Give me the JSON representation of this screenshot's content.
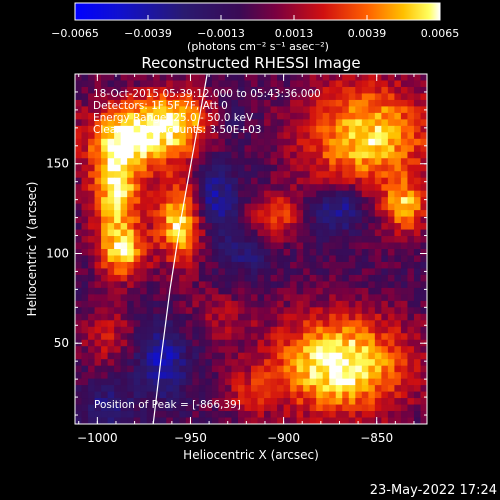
{
  "colorbar": {
    "ticks": [
      "-0.0065",
      "-0.0039",
      "-0.0013",
      "0.0013",
      "0.0039",
      "0.0065"
    ],
    "range": [
      -0.0065,
      0.0065
    ],
    "units_label": "(photons cm⁻² s⁻¹ asec⁻²)"
  },
  "chart_data": {
    "type": "heatmap",
    "title": "Reconstructed RHESSI Image",
    "xlabel": "Heliocentric X (arcsec)",
    "ylabel": "Heliocentric Y (arcsec)",
    "xlim": [
      -1012,
      -823
    ],
    "ylim": [
      5,
      200
    ],
    "xticks": [
      -1000,
      -950,
      -900,
      -850
    ],
    "xtick_labels": [
      "−1000",
      "−950",
      "−900",
      "−850"
    ],
    "yticks": [
      50,
      100,
      150
    ],
    "ytick_labels": [
      "50",
      "100",
      "150"
    ],
    "colormap": "blue-purple-red-yellow-white",
    "info_lines": [
      "18-Oct-2015 05:39:12.000 to 05:43:36.000",
      "Detectors: 1F 5F 7F, Att 0",
      "Energy Range: 25.0 - 50.0 keV",
      "Clean     Total counts: 3.50E+03"
    ],
    "peak_label": "Position of Peak = [-866,39]",
    "peak": [
      -866,
      39
    ],
    "limb_curve": [
      [
        -970,
        5
      ],
      [
        -966,
        40
      ],
      [
        -961,
        80
      ],
      [
        -955,
        120
      ],
      [
        -948,
        160
      ],
      [
        -941,
        200
      ]
    ],
    "sources": [
      {
        "x": -870,
        "y": 38,
        "sx": 26,
        "sy": 20,
        "amp": 1.0
      },
      {
        "x": -955,
        "y": 118,
        "sx": 9,
        "sy": 16,
        "amp": 0.95
      },
      {
        "x": -990,
        "y": 132,
        "sx": 10,
        "sy": 20,
        "amp": 0.85
      },
      {
        "x": -986,
        "y": 100,
        "sx": 9,
        "sy": 10,
        "amp": 0.7
      },
      {
        "x": -980,
        "y": 165,
        "sx": 20,
        "sy": 14,
        "amp": 0.8
      },
      {
        "x": -955,
        "y": 175,
        "sx": 16,
        "sy": 12,
        "amp": 0.6
      },
      {
        "x": -855,
        "y": 165,
        "sx": 25,
        "sy": 22,
        "amp": 0.85
      },
      {
        "x": -835,
        "y": 125,
        "sx": 8,
        "sy": 10,
        "amp": 0.7
      },
      {
        "x": -905,
        "y": 120,
        "sx": 9,
        "sy": 9,
        "amp": 0.55
      },
      {
        "x": -995,
        "y": 55,
        "sx": 10,
        "sy": 12,
        "amp": 0.35
      },
      {
        "x": -935,
        "y": 65,
        "sx": 12,
        "sy": 10,
        "amp": 0.25
      },
      {
        "x": -918,
        "y": 22,
        "sx": 10,
        "sy": 10,
        "amp": 0.3
      }
    ],
    "negatives": [
      {
        "x": -938,
        "y": 130,
        "sx": 9,
        "sy": 14,
        "amp": 0.55
      },
      {
        "x": -870,
        "y": 125,
        "sx": 10,
        "sy": 9,
        "amp": 0.55
      },
      {
        "x": -965,
        "y": 40,
        "sx": 10,
        "sy": 14,
        "amp": 0.55
      },
      {
        "x": -995,
        "y": 15,
        "sx": 10,
        "sy": 8,
        "amp": 0.35
      },
      {
        "x": -920,
        "y": 100,
        "sx": 10,
        "sy": 8,
        "amp": 0.3
      },
      {
        "x": -930,
        "y": 175,
        "sx": 8,
        "sy": 10,
        "amp": 0.3
      }
    ]
  },
  "footer": {
    "timestamp": "23-May-2022 17:24"
  }
}
